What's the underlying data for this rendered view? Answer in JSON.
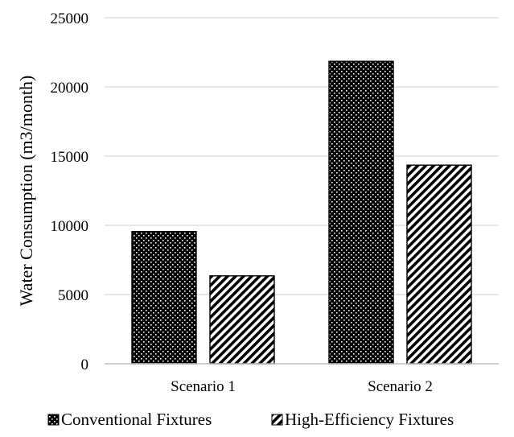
{
  "chart_data": {
    "type": "bar",
    "title": "",
    "xlabel": "",
    "ylabel": "Water Consumption (m3/month)",
    "categories": [
      "Scenario 1",
      "Scenario 2"
    ],
    "series": [
      {
        "name": "Conventional Fixtures",
        "values": [
          9550,
          21850
        ],
        "pattern": "dots-on-black"
      },
      {
        "name": "High-Efficiency Fixtures",
        "values": [
          6350,
          14350
        ],
        "pattern": "diagonal-stripes"
      }
    ],
    "ylim": [
      0,
      25000
    ],
    "yticks": [
      "0",
      "5000",
      "10000",
      "15000",
      "20000",
      "25000"
    ],
    "grid": true,
    "legend_position": "bottom",
    "colors": {
      "bar_dark": "#000000",
      "pattern_light": "#ffffff",
      "grid": "#d9d9d9",
      "axis": "#bfbfbf"
    }
  }
}
